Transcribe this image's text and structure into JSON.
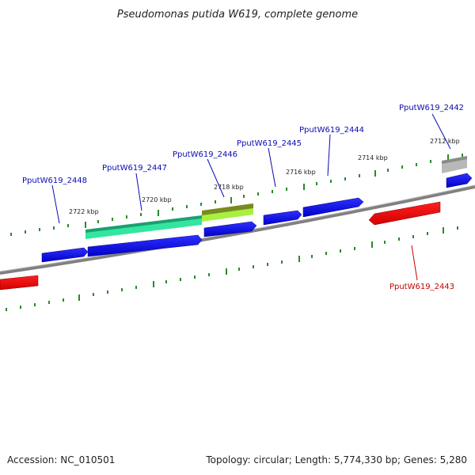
{
  "title": "Pseudomonas putida W619, complete genome",
  "footer": {
    "accession": "Accession: NC_010501",
    "summary": "Topology: circular; Length: 5,774,330 bp; Genes: 5,280"
  },
  "colors": {
    "forward_gene": "#0a0ae6",
    "reverse_gene": "#e61414",
    "forward_label": "#0a0ab4",
    "reverse_label": "#c80000",
    "backbone": "#808080",
    "tick": "#2a8a2a",
    "highlight_1": "#33e6a0",
    "highlight_2": "#a8f040",
    "highlight_3": "#b8b8b8"
  },
  "scale_labels": [
    "2722 kbp",
    "2720 kbp",
    "2718 kbp",
    "2716 kbp",
    "2714 kbp",
    "2712 kbp"
  ],
  "genes": [
    {
      "name": "PputW619_2448",
      "strand": "forward"
    },
    {
      "name": "PputW619_2447",
      "strand": "forward"
    },
    {
      "name": "PputW619_2446",
      "strand": "forward"
    },
    {
      "name": "PputW619_2445",
      "strand": "forward"
    },
    {
      "name": "PputW619_2444",
      "strand": "forward"
    },
    {
      "name": "PputW619_2443",
      "strand": "reverse"
    },
    {
      "name": "PputW619_2442",
      "strand": "forward"
    }
  ]
}
